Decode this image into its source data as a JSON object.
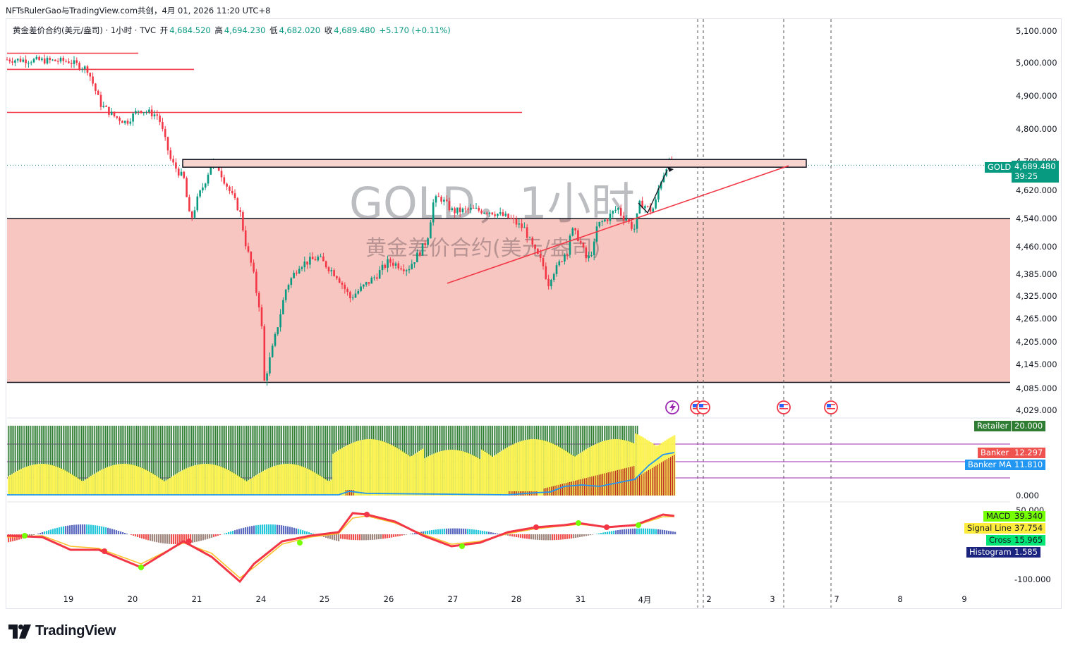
{
  "header": {
    "author_line": "NFTsRulerGao与TradingView.com共创，4月 01, 2026 11:20 UTC+8"
  },
  "legend": {
    "symbol_desc": "黄金差价合约(美元/盎司) · 1小时 · TVC",
    "open_label": "开",
    "open": "4,684.520",
    "high_label": "高",
    "high": "4,694.230",
    "low_label": "低",
    "low": "4,682.020",
    "close_label": "收",
    "close": "4,689.480",
    "change": "+5.170 (+0.11%)"
  },
  "watermark": {
    "line1": "GOLD，1小时",
    "line2": "黄金差价合约(美元/盎司)"
  },
  "colors": {
    "up": "#089981",
    "down": "#f23645",
    "zone": "#f8c6c0",
    "yellow": "#fbf356",
    "green": "#2e7d32",
    "blue": "#2962ff",
    "red_line": "#f23645"
  },
  "chart_data": {
    "type": "candlestick",
    "x_tick_labels": [
      "19",
      "20",
      "21",
      "24",
      "25",
      "26",
      "27",
      "28",
      "31",
      "4月",
      "2",
      "3",
      "7",
      "8",
      "9"
    ],
    "price_ticks": [
      "5,100.000",
      "5,000.000",
      "4,900.000",
      "4,800.000",
      "4,700.000",
      "4,620.000",
      "4,540.000",
      "4,460.000",
      "4,385.000",
      "4,325.000",
      "4,265.000",
      "4,205.000",
      "4,145.000",
      "4,085.000",
      "4,029.000"
    ],
    "price_anchor": [
      {
        "price": 5100,
        "label_y": 44
      },
      {
        "price": 5000,
        "label_y": 89
      },
      {
        "price": 4900,
        "label_y": 136
      },
      {
        "price": 4800,
        "label_y": 183
      },
      {
        "price": 4700,
        "label_y": 229
      },
      {
        "price": 4620,
        "label_y": 270
      },
      {
        "price": 4540,
        "label_y": 310
      },
      {
        "price": 4460,
        "label_y": 350
      },
      {
        "price": 4385,
        "label_y": 389
      },
      {
        "price": 4325,
        "label_y": 420
      },
      {
        "price": 4265,
        "label_y": 452
      },
      {
        "price": 4205,
        "label_y": 485
      },
      {
        "price": 4145,
        "label_y": 517
      },
      {
        "price": 4085,
        "label_y": 551
      },
      {
        "price": 4029,
        "label_y": 582
      }
    ],
    "close_path": [
      [
        18,
        5010
      ],
      [
        19,
        5005
      ],
      [
        19.3,
        4980
      ],
      [
        19.5,
        4875
      ],
      [
        19.7,
        4840
      ],
      [
        19.9,
        4820
      ],
      [
        20.1,
        4860
      ],
      [
        20.4,
        4840
      ],
      [
        20.6,
        4700
      ],
      [
        20.8,
        4650
      ],
      [
        20.9,
        4530
      ],
      [
        21.05,
        4600
      ],
      [
        21.3,
        4640
      ],
      [
        21.6,
        4700
      ],
      [
        21.8,
        4690
      ],
      [
        22.0,
        4660
      ],
      [
        22.5,
        4610
      ],
      [
        23.0,
        4560
      ],
      [
        23.3,
        4460
      ],
      [
        23.6,
        4400
      ],
      [
        23.8,
        4330
      ],
      [
        24.0,
        4280
      ],
      [
        24.05,
        4100
      ],
      [
        24.2,
        4200
      ],
      [
        24.4,
        4350
      ],
      [
        24.6,
        4410
      ],
      [
        24.9,
        4430
      ],
      [
        25.2,
        4380
      ],
      [
        25.4,
        4320
      ],
      [
        25.6,
        4350
      ],
      [
        25.8,
        4380
      ],
      [
        26.0,
        4420
      ],
      [
        26.3,
        4400
      ],
      [
        26.5,
        4450
      ],
      [
        26.6,
        4480
      ],
      [
        26.7,
        4590
      ],
      [
        26.8,
        4600
      ],
      [
        27.0,
        4560
      ],
      [
        27.3,
        4565
      ],
      [
        27.6,
        4560
      ],
      [
        27.9,
        4540
      ],
      [
        28.1,
        4520
      ],
      [
        28.3,
        4510
      ],
      [
        28.5,
        4470
      ],
      [
        28.7,
        4440
      ],
      [
        28.8,
        4430
      ],
      [
        29.0,
        4400
      ],
      [
        29.1,
        4370
      ],
      [
        29.2,
        4360
      ],
      [
        29.4,
        4390
      ],
      [
        29.6,
        4400
      ],
      [
        29.8,
        4420
      ],
      [
        30.0,
        4440
      ],
      [
        30.2,
        4450
      ],
      [
        30.4,
        4510
      ],
      [
        30.6,
        4500
      ],
      [
        30.8,
        4490
      ],
      [
        31.0,
        4470
      ],
      [
        31.2,
        4420
      ],
      [
        31.4,
        4460
      ],
      [
        31.5,
        4520
      ],
      [
        31.8,
        4540
      ],
      [
        32.0,
        4560
      ],
      [
        32.2,
        4570
      ],
      [
        32.4,
        4545
      ],
      [
        32.6,
        4540
      ],
      [
        32.8,
        4520
      ],
      [
        33.0,
        4510
      ],
      [
        33.2,
        4580
      ],
      [
        33.4,
        4580
      ],
      [
        33.6,
        4570
      ],
      [
        33.8,
        4560
      ],
      [
        34.0,
        4590
      ],
      [
        34.2,
        4640
      ],
      [
        34.4,
        4660
      ],
      [
        34.6,
        4690
      ],
      [
        34.7,
        4700
      ],
      [
        34.8,
        4690
      ]
    ],
    "resistance_box": [
      4706,
      4684
    ],
    "red_hlines": [
      5030,
      4980,
      4850
    ],
    "support_zone": [
      4540,
      4100
    ],
    "trendline": [
      [
        27.0,
        4360
      ],
      [
        36.8,
        4688
      ]
    ],
    "current_price": 4689.48,
    "countdown": "39:25",
    "symbol": "GOLD",
    "indicator1": {
      "ticks": [
        "0.000"
      ],
      "legend": [
        {
          "name": "Retailer",
          "value": "20.000"
        },
        {
          "name": "Banker",
          "value": "12.297"
        },
        {
          "name": "Banker MA",
          "value": "11.810"
        }
      ]
    },
    "macd": {
      "ticks": [
        "50.000",
        "-100.000"
      ],
      "legend": [
        {
          "name": "MACD",
          "value": "39.340"
        },
        {
          "name": "Signal Line",
          "value": "37.754"
        },
        {
          "name": "Cross",
          "value": "15.965"
        },
        {
          "name": "Histogram",
          "value": "1.585"
        }
      ]
    }
  }
}
